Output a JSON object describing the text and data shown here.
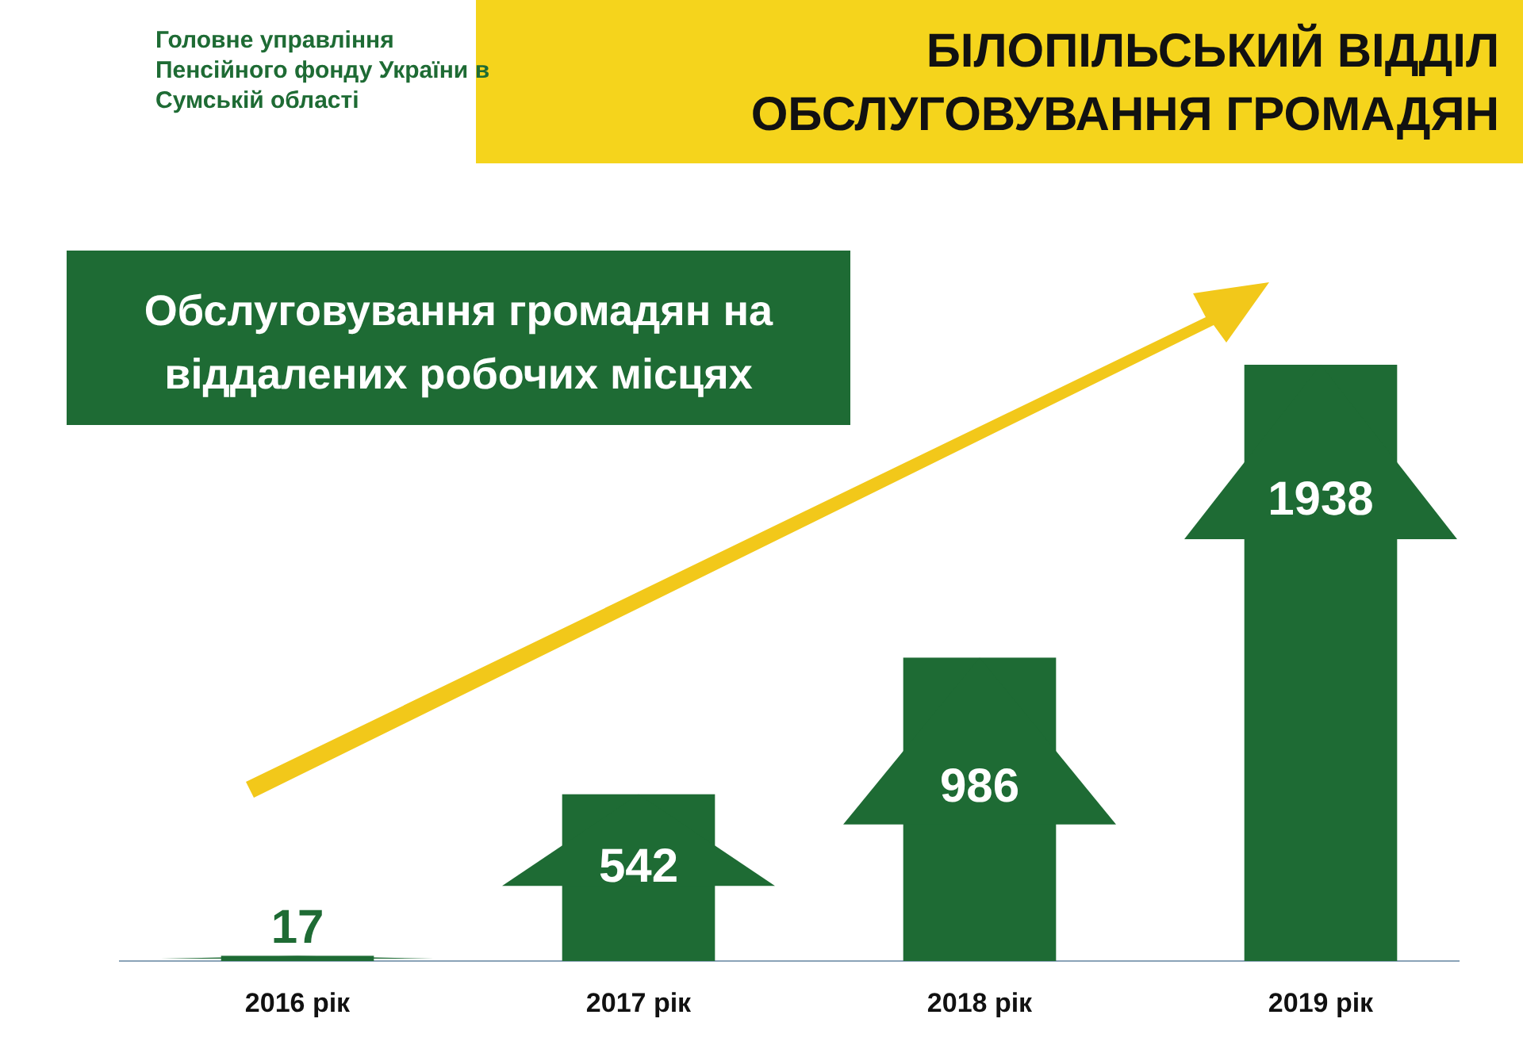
{
  "chart_data": {
    "type": "bar",
    "title": "БІЛОПІЛЬСЬКИЙ ВІДДІЛ ОБСЛУГОВУВАННЯ ГРОМАДЯН",
    "subtitle": "Обслуговування громадян на віддалених робочих місцях",
    "annotations": [
      "Головне управління Пенсійного фонду України в Сумській області"
    ],
    "categories": [
      "2016 рік",
      "2017 рік",
      "2018 рік",
      "2019 рік"
    ],
    "values": [
      17,
      542,
      986,
      1938
    ],
    "color": "#1e6b34",
    "data_labels": true
  }
}
